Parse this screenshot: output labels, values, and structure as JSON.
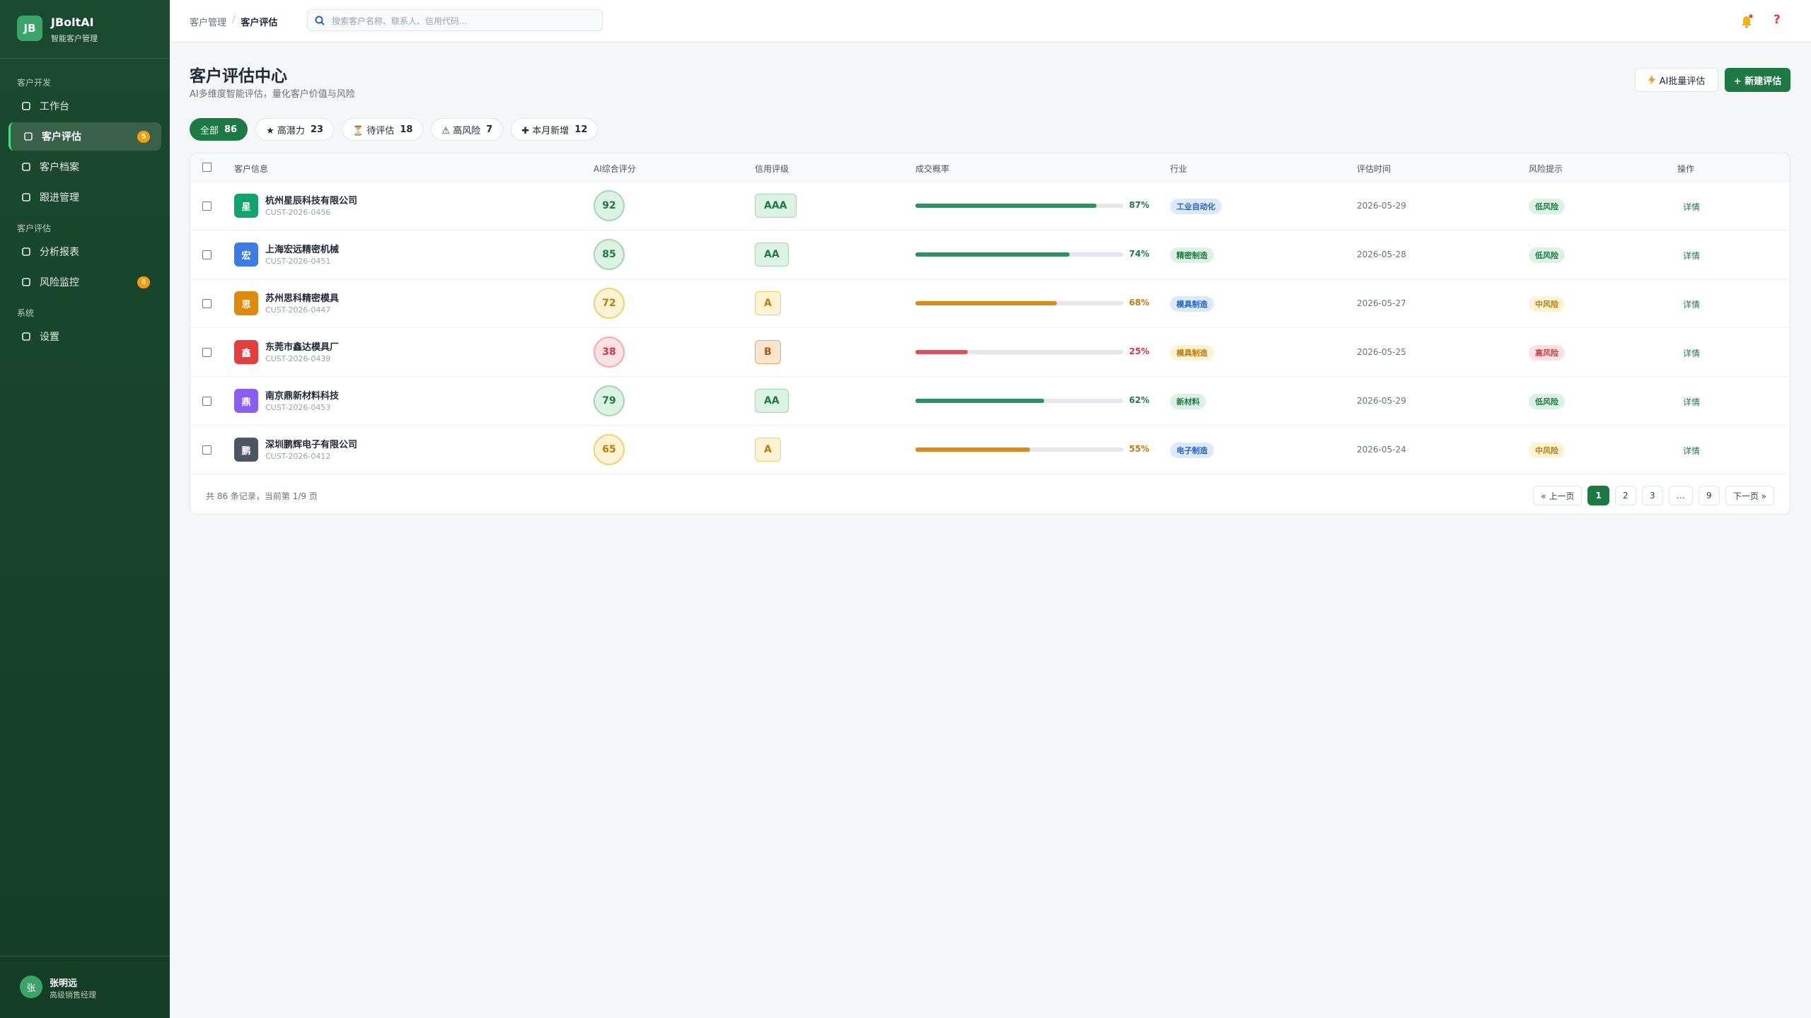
{
  "sidebar": {
    "logo": "JB",
    "brand": "JBoltAI",
    "brand_sub": "智能客户管理",
    "sections": [
      {
        "title": "客户开发",
        "items": [
          {
            "label": "工作台"
          },
          {
            "label": "客户评估",
            "badge": "5",
            "active": true
          },
          {
            "label": "客户档案"
          },
          {
            "label": "跟进管理"
          }
        ]
      },
      {
        "title": "客户评估",
        "items": [
          {
            "label": "分析报表"
          },
          {
            "label": "风险监控",
            "badge": "8"
          }
        ]
      },
      {
        "title": "系统",
        "items": [
          {
            "label": "设置"
          }
        ]
      }
    ],
    "user": {
      "avatar": "张",
      "name": "张明远",
      "role": "高级销售经理"
    }
  },
  "topbar": {
    "breadcrumb": [
      "客户管理",
      "/",
      "客户评估"
    ],
    "search_placeholder": "搜索客户名称、联系人、信用代码...",
    "help": "?"
  },
  "header": {
    "title": "客户评估中心",
    "subtitle": "AI多维度智能评估，量化客户价值与风险",
    "buttons": [
      "AI批量评估",
      "+ 新建评估"
    ]
  },
  "filters": [
    {
      "label": "全部",
      "count": 86,
      "active": true
    },
    {
      "label": "★ 高潜力",
      "count": 23
    },
    {
      "label": "⏳ 待评估",
      "count": 18
    },
    {
      "label": "⚠ 高风险",
      "count": 7
    },
    {
      "label": "✚ 本月新增",
      "count": 12
    }
  ],
  "table": {
    "columns": [
      "客户信息",
      "AI综合评分",
      "信用评级",
      "成交概率",
      "行业",
      "评估时间",
      "风险提示",
      "操作"
    ],
    "rows": [
      {
        "avatar": "星",
        "avatar_color": "#10a56f",
        "name": "杭州星辰科技有限公司",
        "id": "CUST-2026-0456",
        "score": 92,
        "score_tone": "green",
        "credit": "AAA",
        "credit_tone": "green",
        "probability": 87,
        "probability_label": "87%",
        "prob_tone": "green",
        "industry": "工业自动化",
        "industry_tone": "blue",
        "date": "2026-05-29",
        "risk": "低风险",
        "risk_tone": "green",
        "action": "详情"
      },
      {
        "avatar": "宏",
        "avatar_color": "#3b7be8",
        "name": "上海宏远精密机械",
        "id": "CUST-2026-0451",
        "score": 85,
        "score_tone": "green",
        "credit": "AA",
        "credit_tone": "green",
        "probability": 74,
        "probability_label": "74%",
        "prob_tone": "green",
        "industry": "精密制造",
        "industry_tone": "green",
        "date": "2026-05-28",
        "risk": "低风险",
        "risk_tone": "green",
        "action": "详情"
      },
      {
        "avatar": "思",
        "avatar_color": "#e08a0b",
        "name": "苏州思科精密模具",
        "id": "CUST-2026-0447",
        "score": 72,
        "score_tone": "amber",
        "credit": "A",
        "credit_tone": "amber",
        "probability": 68,
        "probability_label": "68%",
        "prob_tone": "amber",
        "industry": "模具制造",
        "industry_tone": "blue",
        "date": "2026-05-27",
        "risk": "中风险",
        "risk_tone": "amber",
        "action": "详情"
      },
      {
        "avatar": "鑫",
        "avatar_color": "#e53e3e",
        "name": "东莞市鑫达模具厂",
        "id": "CUST-2026-0439",
        "score": 38,
        "score_tone": "red",
        "credit": "B",
        "credit_tone": "orange",
        "probability": 25,
        "probability_label": "25%",
        "prob_tone": "red",
        "industry": "模具制造",
        "industry_tone": "amber",
        "date": "2026-05-25",
        "risk": "高风险",
        "risk_tone": "red",
        "action": "详情"
      },
      {
        "avatar": "鼎",
        "avatar_color": "#8b5cf6",
        "name": "南京鼎新材料科技",
        "id": "CUST-2026-0453",
        "score": 79,
        "score_tone": "green",
        "credit": "AA",
        "credit_tone": "green",
        "probability": 62,
        "probability_label": "62%",
        "prob_tone": "green",
        "industry": "新材料",
        "industry_tone": "green",
        "date": "2026-05-29",
        "risk": "低风险",
        "risk_tone": "green",
        "action": "详情"
      },
      {
        "avatar": "鹏",
        "avatar_color": "#4b5563",
        "name": "深圳鹏辉电子有限公司",
        "id": "CUST-2026-0412",
        "score": 65,
        "score_tone": "amber",
        "credit": "A",
        "credit_tone": "amber",
        "probability": 55,
        "probability_label": "55%",
        "prob_tone": "amber",
        "industry": "电子制造",
        "industry_tone": "blue",
        "date": "2026-05-24",
        "risk": "中风险",
        "risk_tone": "amber",
        "action": "详情"
      }
    ]
  },
  "pagination": {
    "summary": "共 86 条记录，当前第 1/9 页",
    "pages": [
      "« 上一页",
      "1",
      "2",
      "3",
      "…",
      "9",
      "下一页 »"
    ],
    "current": "1"
  }
}
